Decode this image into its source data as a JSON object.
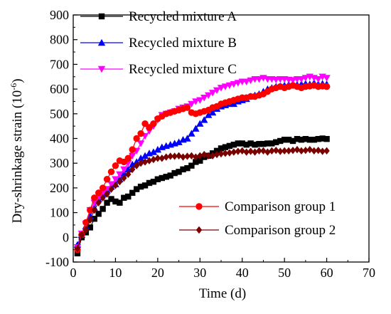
{
  "chart_data": {
    "type": "scatter",
    "xlabel": "Time (d)",
    "ylabel": "Dry-shrinkage strain (10",
    "ylabel_sup": "-6",
    "ylabel_close": ")",
    "xlim": [
      0,
      70
    ],
    "ylim": [
      -100,
      900
    ],
    "xticks": [
      0,
      10,
      20,
      30,
      40,
      50,
      60,
      70
    ],
    "yticks": [
      -100,
      0,
      100,
      200,
      300,
      400,
      500,
      600,
      700,
      800,
      900
    ],
    "grid": false,
    "legend_placement": [
      "top-left",
      "bottom-right"
    ],
    "series": [
      {
        "name": "Recycled mixture A",
        "color": "#000000",
        "marker": "square",
        "x": [
          1,
          2,
          3,
          4,
          5,
          6,
          7,
          8,
          9,
          10,
          11,
          12,
          13,
          14,
          15,
          16,
          17,
          18,
          19,
          20,
          21,
          22,
          23,
          24,
          25,
          26,
          27,
          28,
          29,
          30,
          31,
          32,
          33,
          34,
          35,
          36,
          37,
          38,
          39,
          40,
          41,
          42,
          43,
          44,
          45,
          46,
          47,
          48,
          49,
          50,
          51,
          52,
          53,
          54,
          55,
          56,
          57,
          58,
          59,
          60
        ],
        "y": [
          -65,
          0,
          20,
          40,
          75,
          95,
          115,
          140,
          155,
          145,
          140,
          160,
          165,
          180,
          195,
          205,
          210,
          220,
          225,
          235,
          240,
          245,
          250,
          260,
          265,
          275,
          280,
          290,
          305,
          310,
          325,
          330,
          340,
          350,
          360,
          365,
          370,
          375,
          380,
          380,
          375,
          380,
          375,
          378,
          378,
          380,
          380,
          385,
          390,
          395,
          395,
          390,
          398,
          395,
          398,
          395,
          395,
          398,
          400,
          398
        ]
      },
      {
        "name": "Recycled mixture B",
        "color": "#0000ff",
        "marker": "triangle-up",
        "x": [
          1,
          2,
          3,
          4,
          5,
          6,
          7,
          8,
          9,
          10,
          11,
          12,
          13,
          14,
          15,
          16,
          17,
          18,
          19,
          20,
          21,
          22,
          23,
          24,
          25,
          26,
          27,
          28,
          29,
          30,
          31,
          32,
          33,
          34,
          35,
          36,
          37,
          38,
          39,
          40,
          41,
          42,
          43,
          44,
          45,
          46,
          47,
          48,
          49,
          50,
          51,
          52,
          53,
          54,
          55,
          56,
          57,
          58,
          59,
          60
        ],
        "y": [
          -30,
          10,
          45,
          85,
          120,
          155,
          175,
          190,
          205,
          215,
          235,
          260,
          275,
          295,
          305,
          320,
          330,
          340,
          345,
          355,
          365,
          370,
          375,
          380,
          385,
          395,
          400,
          420,
          440,
          460,
          475,
          495,
          505,
          520,
          530,
          535,
          540,
          540,
          550,
          555,
          560,
          570,
          575,
          580,
          590,
          600,
          605,
          610,
          612,
          615,
          618,
          620,
          618,
          620,
          622,
          620,
          625,
          620,
          622,
          620
        ]
      },
      {
        "name": "Recycled mixture C",
        "color": "#ff00ff",
        "marker": "triangle-down",
        "x": [
          1,
          2,
          3,
          4,
          5,
          6,
          7,
          8,
          9,
          10,
          11,
          12,
          13,
          14,
          15,
          16,
          17,
          18,
          19,
          20,
          21,
          22,
          23,
          24,
          25,
          26,
          27,
          28,
          29,
          30,
          31,
          32,
          33,
          34,
          35,
          36,
          37,
          38,
          39,
          40,
          41,
          42,
          43,
          44,
          45,
          46,
          47,
          48,
          49,
          50,
          51,
          52,
          53,
          54,
          55,
          56,
          57,
          58,
          59,
          60
        ],
        "y": [
          -40,
          15,
          55,
          110,
          140,
          160,
          180,
          195,
          215,
          235,
          255,
          275,
          300,
          330,
          350,
          380,
          410,
          430,
          450,
          475,
          495,
          500,
          505,
          510,
          520,
          525,
          530,
          540,
          550,
          555,
          565,
          575,
          585,
          595,
          605,
          610,
          615,
          620,
          625,
          630,
          630,
          635,
          640,
          640,
          645,
          640,
          640,
          638,
          640,
          640,
          638,
          636,
          640,
          640,
          645,
          650,
          645,
          640,
          650,
          645
        ]
      },
      {
        "name": "Comparison group 1",
        "color": "#ff0000",
        "marker": "circle",
        "x": [
          1,
          2,
          3,
          4,
          5,
          6,
          7,
          8,
          9,
          10,
          11,
          12,
          13,
          14,
          15,
          16,
          17,
          18,
          19,
          20,
          21,
          22,
          23,
          24,
          25,
          26,
          27,
          28,
          29,
          30,
          31,
          32,
          33,
          34,
          35,
          36,
          37,
          38,
          39,
          40,
          41,
          42,
          43,
          44,
          45,
          46,
          47,
          48,
          49,
          50,
          51,
          52,
          53,
          54,
          55,
          56,
          57,
          58,
          59,
          60
        ],
        "y": [
          -50,
          10,
          60,
          110,
          160,
          180,
          200,
          235,
          265,
          290,
          310,
          305,
          320,
          355,
          400,
          420,
          460,
          445,
          460,
          480,
          490,
          500,
          505,
          510,
          515,
          520,
          525,
          505,
          500,
          505,
          510,
          515,
          525,
          530,
          540,
          545,
          550,
          555,
          560,
          565,
          565,
          570,
          570,
          575,
          580,
          590,
          600,
          605,
          610,
          605,
          610,
          615,
          610,
          605,
          610,
          612,
          615,
          610,
          612,
          610
        ]
      },
      {
        "name": "Comparison group 2",
        "color": "#7a0000",
        "marker": "diamond",
        "x": [
          1,
          2,
          3,
          4,
          5,
          6,
          7,
          8,
          9,
          10,
          11,
          12,
          13,
          14,
          15,
          16,
          17,
          18,
          19,
          20,
          21,
          22,
          23,
          24,
          25,
          26,
          27,
          28,
          29,
          30,
          31,
          32,
          33,
          34,
          35,
          36,
          37,
          38,
          39,
          40,
          41,
          42,
          43,
          44,
          45,
          46,
          47,
          48,
          49,
          50,
          51,
          52,
          53,
          54,
          55,
          56,
          57,
          58,
          59,
          60
        ],
        "y": [
          -45,
          10,
          30,
          70,
          110,
          140,
          160,
          175,
          195,
          210,
          225,
          240,
          255,
          275,
          290,
          300,
          305,
          310,
          315,
          320,
          320,
          325,
          328,
          328,
          330,
          325,
          328,
          330,
          325,
          330,
          335,
          330,
          330,
          335,
          338,
          340,
          342,
          345,
          348,
          350,
          345,
          348,
          345,
          350,
          350,
          345,
          350,
          352,
          348,
          350,
          350,
          352,
          355,
          350,
          352,
          355,
          350,
          352,
          348,
          350
        ]
      }
    ]
  }
}
